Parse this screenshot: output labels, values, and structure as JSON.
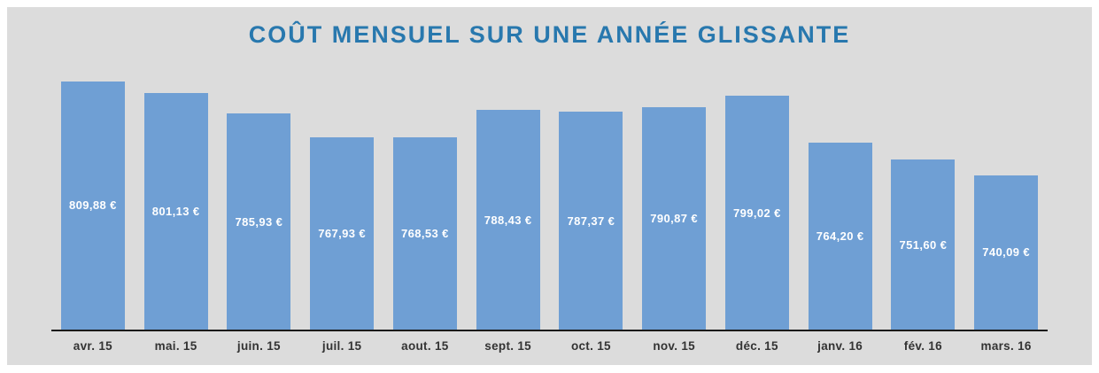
{
  "chart_data": {
    "type": "bar",
    "title": "COÛT MENSUEL SUR UNE ANNÉE GLISSANTE",
    "categories": [
      "avr. 15",
      "mai. 15",
      "juin. 15",
      "juil. 15",
      "aout. 15",
      "sept. 15",
      "oct. 15",
      "nov. 15",
      "déc. 15",
      "janv. 16",
      "fév. 16",
      "mars. 16"
    ],
    "values": [
      809.88,
      801.13,
      785.93,
      767.93,
      768.53,
      788.43,
      787.37,
      790.87,
      799.02,
      764.2,
      751.6,
      740.09
    ],
    "value_labels": [
      "809,88 €",
      "801,13 €",
      "785,93 €",
      "767,93 €",
      "768,53 €",
      "788,43 €",
      "787,37 €",
      "790,87 €",
      "799,02 €",
      "764,20 €",
      "751,60 €",
      "740,09 €"
    ],
    "xlabel": "",
    "ylabel": "",
    "ylim": [
      625,
      825
    ],
    "grid": false,
    "legend": "none",
    "colors": {
      "bar": "#6f9fd4",
      "title": "#2878ae",
      "background": "#dcdcdc",
      "axis_line": "#1a1a1a",
      "value_label": "#ffffff",
      "tick_label": "#333333"
    }
  }
}
